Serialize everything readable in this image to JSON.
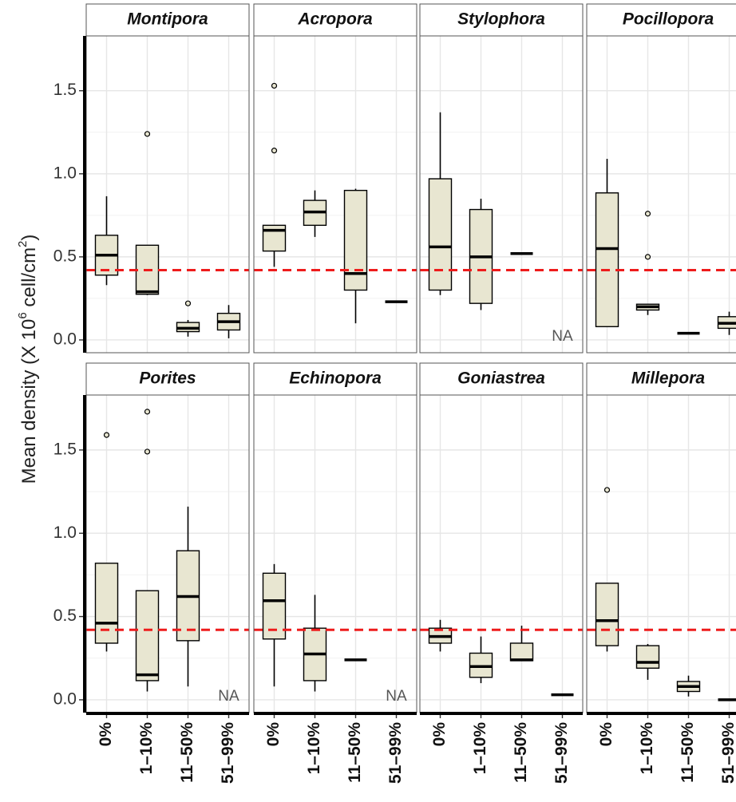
{
  "y_label": [
    "Mean density  (X 10",
    "6",
    " cell/cm",
    "2",
    ")"
  ],
  "chart_data": [
    {
      "type": "box",
      "title": "Montipora",
      "categories": [
        "0%",
        "1–10%",
        "11–50%",
        "51–99%"
      ],
      "boxes": [
        {
          "min": 0.33,
          "q1": 0.39,
          "median": 0.51,
          "q3": 0.63,
          "max": 0.865
        },
        {
          "min": 0.27,
          "q1": 0.275,
          "median": 0.29,
          "q3": 0.57,
          "max": 0.57,
          "outliers": [
            1.24
          ]
        },
        {
          "min": 0.02,
          "q1": 0.05,
          "median": 0.07,
          "q3": 0.105,
          "max": 0.12,
          "outliers": [
            0.22
          ]
        },
        {
          "min": 0.01,
          "q1": 0.06,
          "median": 0.11,
          "q3": 0.16,
          "max": 0.21
        }
      ],
      "hline": 0.42,
      "ylim": [
        -0.077,
        1.83
      ],
      "yticks": [
        {
          "value": 0,
          "label": "0.0"
        },
        {
          "value": 0.5,
          "label": "0.5"
        },
        {
          "value": 1,
          "label": "1.0"
        },
        {
          "value": 1.5,
          "label": "1.5"
        }
      ]
    },
    {
      "type": "box",
      "title": "Acropora",
      "categories": [
        "0%",
        "1–10%",
        "11–50%",
        "51–99%"
      ],
      "boxes": [
        {
          "min": 0.44,
          "q1": 0.535,
          "median": 0.66,
          "q3": 0.69,
          "max": 0.69,
          "outliers": [
            1.53,
            1.14
          ]
        },
        {
          "min": 0.62,
          "q1": 0.69,
          "median": 0.77,
          "q3": 0.84,
          "max": 0.9
        },
        {
          "min": 0.1,
          "q1": 0.3,
          "median": 0.4,
          "q3": 0.9,
          "max": 0.91
        },
        {
          "min": 0.23,
          "q1": 0.23,
          "median": 0.23,
          "q3": 0.23,
          "max": 0.23
        }
      ],
      "hline": 0.42,
      "ylim": [
        -0.077,
        1.83
      ],
      "yticks": [
        {
          "value": 0,
          "label": "0.0"
        },
        {
          "value": 0.5,
          "label": "0.5"
        },
        {
          "value": 1,
          "label": "1.0"
        },
        {
          "value": 1.5,
          "label": "1.5"
        }
      ]
    },
    {
      "type": "box",
      "title": "Stylophora",
      "categories": [
        "0%",
        "1–10%",
        "11–50%",
        "51–99%"
      ],
      "boxes": [
        {
          "min": 0.27,
          "q1": 0.3,
          "median": 0.56,
          "q3": 0.97,
          "max": 1.37
        },
        {
          "min": 0.18,
          "q1": 0.22,
          "median": 0.5,
          "q3": 0.785,
          "max": 0.85
        },
        {
          "min": 0.52,
          "q1": 0.52,
          "median": 0.52,
          "q3": 0.52,
          "max": 0.52
        },
        null
      ],
      "na_text": "NA",
      "hline": 0.42,
      "ylim": [
        -0.077,
        1.83
      ],
      "yticks": [
        {
          "value": 0,
          "label": "0.0"
        },
        {
          "value": 0.5,
          "label": "0.5"
        },
        {
          "value": 1,
          "label": "1.0"
        },
        {
          "value": 1.5,
          "label": "1.5"
        }
      ]
    },
    {
      "type": "box",
      "title": "Pocillopora",
      "categories": [
        "0%",
        "1–10%",
        "11–50%",
        "51–99%"
      ],
      "boxes": [
        {
          "min": 0.08,
          "q1": 0.08,
          "median": 0.55,
          "q3": 0.885,
          "max": 1.09
        },
        {
          "min": 0.15,
          "q1": 0.18,
          "median": 0.2,
          "q3": 0.215,
          "max": 0.215,
          "outliers": [
            0.76,
            0.5
          ]
        },
        {
          "min": 0.04,
          "q1": 0.04,
          "median": 0.04,
          "q3": 0.04,
          "max": 0.04
        },
        {
          "min": 0.03,
          "q1": 0.07,
          "median": 0.1,
          "q3": 0.14,
          "max": 0.17
        }
      ],
      "hline": 0.42,
      "ylim": [
        -0.077,
        1.83
      ],
      "yticks": [
        {
          "value": 0,
          "label": "0.0"
        },
        {
          "value": 0.5,
          "label": "0.5"
        },
        {
          "value": 1,
          "label": "1.0"
        },
        {
          "value": 1.5,
          "label": "1.5"
        }
      ]
    },
    {
      "type": "box",
      "title": "Porites",
      "categories": [
        "0%",
        "1–10%",
        "11–50%",
        "51–99%"
      ],
      "boxes": [
        {
          "min": 0.29,
          "q1": 0.34,
          "median": 0.46,
          "q3": 0.82,
          "max": 0.82,
          "outliers": [
            1.59
          ]
        },
        {
          "min": 0.05,
          "q1": 0.115,
          "median": 0.15,
          "q3": 0.655,
          "max": 0.655,
          "outliers": [
            1.73,
            1.49
          ]
        },
        {
          "min": 0.08,
          "q1": 0.355,
          "median": 0.62,
          "q3": 0.895,
          "max": 1.16
        },
        null
      ],
      "na_text": "NA",
      "hline": 0.42,
      "ylim": [
        -0.077,
        1.83
      ],
      "yticks": [
        {
          "value": 0,
          "label": "0.0"
        },
        {
          "value": 0.5,
          "label": "0.5"
        },
        {
          "value": 1,
          "label": "1.0"
        },
        {
          "value": 1.5,
          "label": "1.5"
        }
      ]
    },
    {
      "type": "box",
      "title": "Echinopora",
      "categories": [
        "0%",
        "1–10%",
        "11–50%",
        "51–99%"
      ],
      "boxes": [
        {
          "min": 0.08,
          "q1": 0.365,
          "median": 0.595,
          "q3": 0.76,
          "max": 0.815
        },
        {
          "min": 0.05,
          "q1": 0.115,
          "median": 0.275,
          "q3": 0.43,
          "max": 0.63
        },
        {
          "min": 0.24,
          "q1": 0.24,
          "median": 0.24,
          "q3": 0.24,
          "max": 0.24
        },
        null
      ],
      "na_text": "NA",
      "hline": 0.42,
      "ylim": [
        -0.077,
        1.83
      ],
      "yticks": [
        {
          "value": 0,
          "label": "0.0"
        },
        {
          "value": 0.5,
          "label": "0.5"
        },
        {
          "value": 1,
          "label": "1.0"
        },
        {
          "value": 1.5,
          "label": "1.5"
        }
      ]
    },
    {
      "type": "box",
      "title": "Goniastrea",
      "categories": [
        "0%",
        "1–10%",
        "11–50%",
        "51–99%"
      ],
      "boxes": [
        {
          "min": 0.29,
          "q1": 0.34,
          "median": 0.38,
          "q3": 0.43,
          "max": 0.48
        },
        {
          "min": 0.1,
          "q1": 0.135,
          "median": 0.2,
          "q3": 0.28,
          "max": 0.38
        },
        {
          "min": 0.235,
          "q1": 0.235,
          "median": 0.24,
          "q3": 0.34,
          "max": 0.445
        },
        {
          "min": 0.03,
          "q1": 0.03,
          "median": 0.03,
          "q3": 0.03,
          "max": 0.03
        }
      ],
      "hline": 0.42,
      "ylim": [
        -0.077,
        1.83
      ],
      "yticks": [
        {
          "value": 0,
          "label": "0.0"
        },
        {
          "value": 0.5,
          "label": "0.5"
        },
        {
          "value": 1,
          "label": "1.0"
        },
        {
          "value": 1.5,
          "label": "1.5"
        }
      ]
    },
    {
      "type": "box",
      "title": "Millepora",
      "categories": [
        "0%",
        "1–10%",
        "11–50%",
        "51–99%"
      ],
      "boxes": [
        {
          "min": 0.29,
          "q1": 0.325,
          "median": 0.475,
          "q3": 0.7,
          "max": 0.7,
          "outliers": [
            1.26
          ]
        },
        {
          "min": 0.12,
          "q1": 0.19,
          "median": 0.225,
          "q3": 0.325,
          "max": 0.335
        },
        {
          "min": 0.02,
          "q1": 0.05,
          "median": 0.08,
          "q3": 0.11,
          "max": 0.145
        },
        {
          "min": 0,
          "q1": 0,
          "median": 0,
          "q3": 0,
          "max": 0
        }
      ],
      "hline": 0.42,
      "ylim": [
        -0.077,
        1.83
      ],
      "yticks": [
        {
          "value": 0,
          "label": "0.0"
        },
        {
          "value": 0.5,
          "label": "0.5"
        },
        {
          "value": 1,
          "label": "1.0"
        },
        {
          "value": 1.5,
          "label": "1.5"
        }
      ]
    }
  ]
}
